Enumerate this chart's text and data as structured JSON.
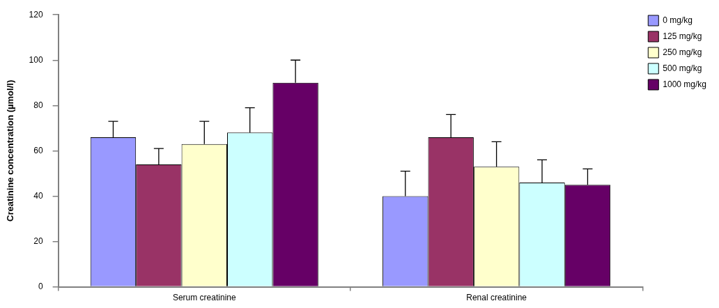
{
  "chart_data": {
    "type": "bar",
    "ylabel": "Creatinine concentration (µmol/l)",
    "categories": [
      "Serum creatinine",
      "Renal creatinine"
    ],
    "series": [
      {
        "name": "0 mg/kg",
        "color": "#9999ff",
        "values": [
          66,
          40
        ],
        "errors": [
          [
            66,
            73
          ],
          [
            40,
            51
          ]
        ]
      },
      {
        "name": "125 mg/kg",
        "color": "#993366",
        "values": [
          54,
          66
        ],
        "errors": [
          [
            54,
            61
          ],
          [
            66,
            76
          ]
        ]
      },
      {
        "name": "250 mg/kg",
        "color": "#ffffcc",
        "values": [
          63,
          53
        ],
        "errors": [
          [
            63,
            73
          ],
          [
            53,
            64
          ]
        ]
      },
      {
        "name": "500 mg/kg",
        "color": "#ccffff",
        "values": [
          68,
          46
        ],
        "errors": [
          [
            68,
            79
          ],
          [
            46,
            56
          ]
        ]
      },
      {
        "name": "1000 mg/kg",
        "color": "#660066",
        "values": [
          90,
          45
        ],
        "errors": [
          [
            90,
            100
          ],
          [
            45,
            52
          ]
        ]
      }
    ],
    "ylim": [
      0,
      120
    ],
    "yticks": [
      0,
      20,
      40,
      60,
      80,
      100,
      120
    ],
    "grid": false,
    "legend": "top right"
  }
}
